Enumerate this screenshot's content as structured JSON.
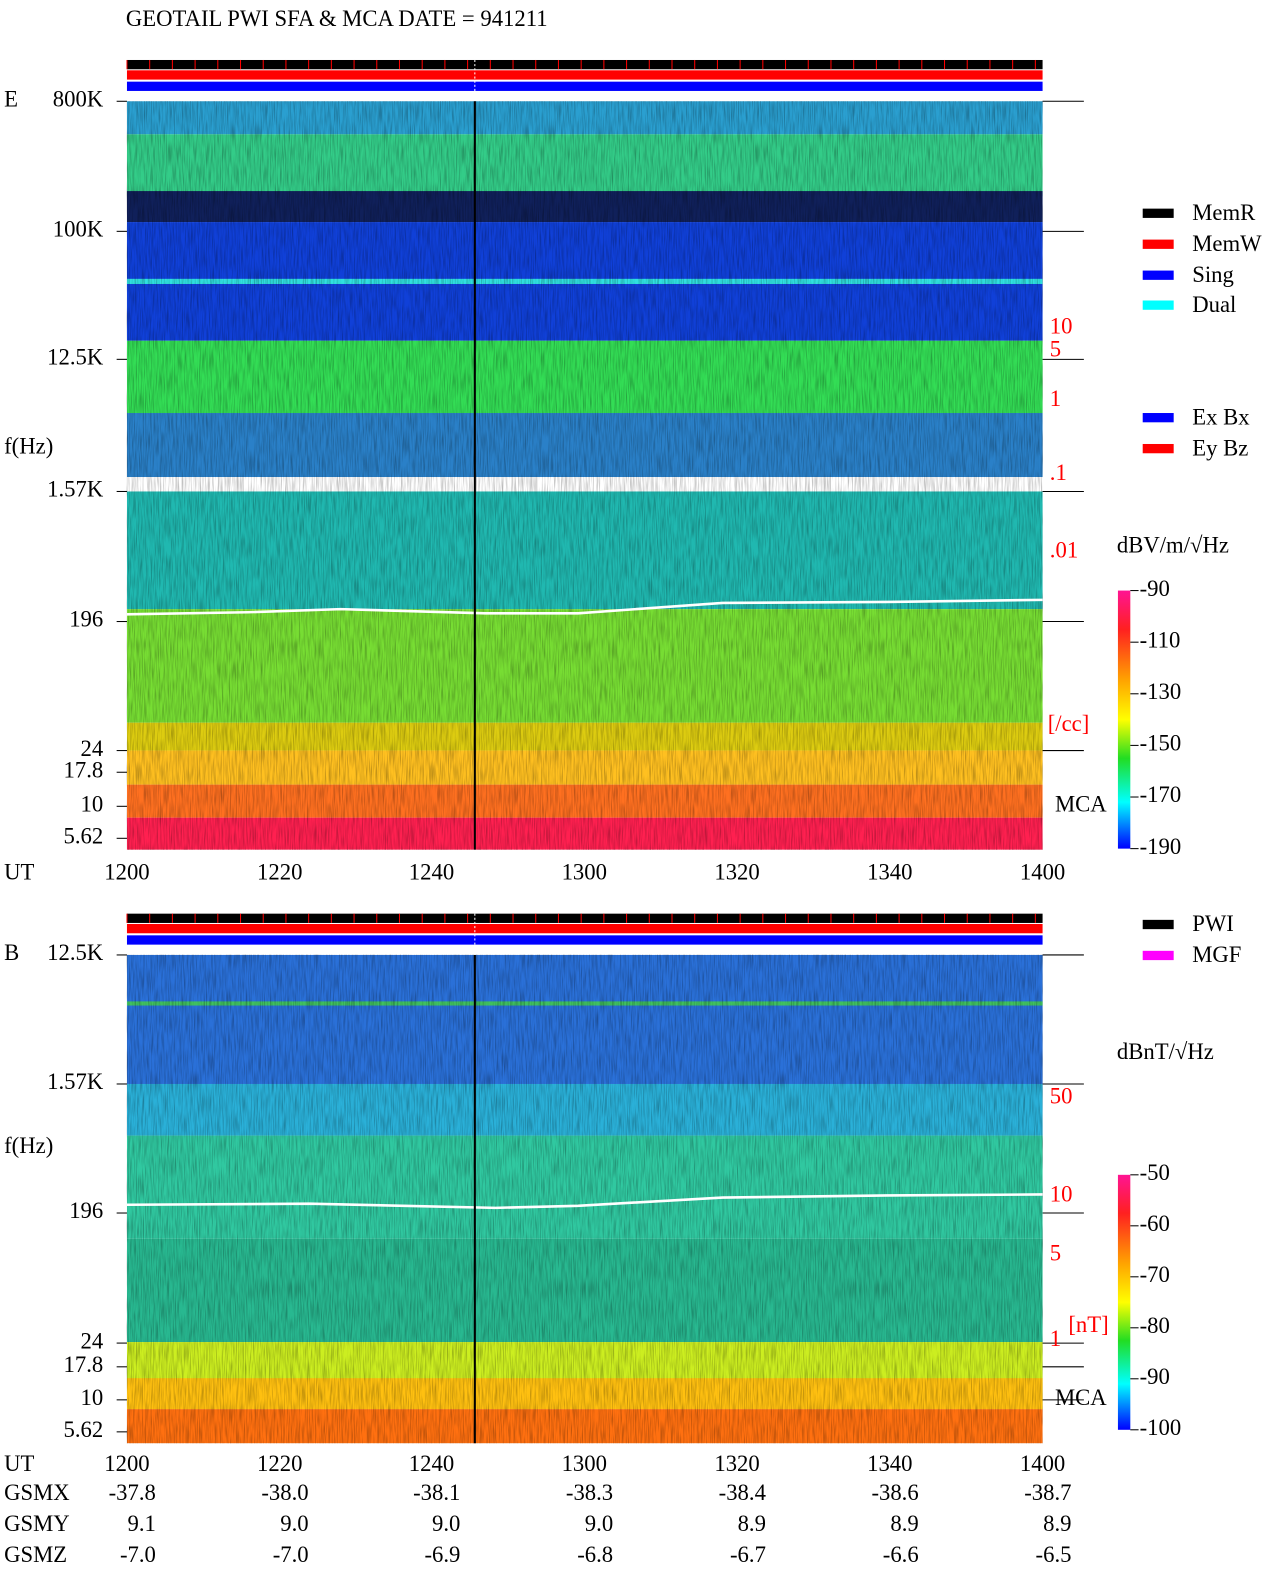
{
  "title": "GEOTAIL   PWI SFA & MCA   DATE = 941211",
  "panels": [
    {
      "label": "E",
      "ylabel": "f(Hz)",
      "yticks": [
        "800K",
        "100K",
        "12.5K",
        "1.57K",
        "196",
        "24",
        "17.8",
        "10",
        "5.62"
      ],
      "xlabel": "UT",
      "xticks": [
        "1200",
        "1220",
        "1240",
        "1300",
        "1320",
        "1340",
        "1400"
      ],
      "right_ticks": [
        "10",
        "5",
        "1",
        ".1",
        ".01"
      ],
      "right_unit": "[/cc]",
      "mca": "MCA",
      "colorbar_title": "dBV/m/√Hz",
      "clim": [
        -190,
        -90
      ],
      "colorbar_ticks": [
        -90,
        -110,
        -130,
        -150,
        -170,
        -190
      ]
    },
    {
      "label": "B",
      "ylabel": "f(Hz)",
      "yticks": [
        "12.5K",
        "1.57K",
        "196",
        "24",
        "17.8",
        "10",
        "5.62"
      ],
      "xlabel": "UT",
      "xticks": [
        "1200",
        "1220",
        "1240",
        "1300",
        "1320",
        "1340",
        "1400"
      ],
      "right_ticks": [
        "50",
        "10",
        "5",
        "1"
      ],
      "right_unit": "[nT]",
      "mca": "MCA",
      "colorbar_title": "dBnT/√Hz",
      "clim": [
        -100,
        -50
      ],
      "colorbar_ticks": [
        -50,
        -60,
        -70,
        -80,
        -90,
        -100
      ]
    }
  ],
  "legend_status": [
    {
      "name": "MemR",
      "color": "#000000"
    },
    {
      "name": "MemW",
      "color": "#ff0000"
    },
    {
      "name": "Sing",
      "color": "#0000ff"
    },
    {
      "name": "Dual",
      "color": "#00ffff"
    }
  ],
  "legend_component": [
    {
      "name": "Ex Bx",
      "color": "#0000ff"
    },
    {
      "name": "Ey Bz",
      "color": "#ff0000"
    }
  ],
  "legend_source": [
    {
      "name": "PWI",
      "color": "#000000"
    },
    {
      "name": "MGF",
      "color": "#ff00ff"
    }
  ],
  "orbit": {
    "rows": [
      {
        "label": "GSMX",
        "values": [
          "-37.8",
          "-38.0",
          "-38.1",
          "-38.3",
          "-38.4",
          "-38.6",
          "-38.7"
        ]
      },
      {
        "label": "GSMY",
        "values": [
          "9.1",
          "9.0",
          "9.0",
          "9.0",
          "8.9",
          "8.9",
          "8.9"
        ]
      },
      {
        "label": "GSMZ",
        "values": [
          "-7.0",
          "-7.0",
          "-6.9",
          "-6.8",
          "-6.7",
          "-6.6",
          "-6.5"
        ]
      }
    ]
  }
}
